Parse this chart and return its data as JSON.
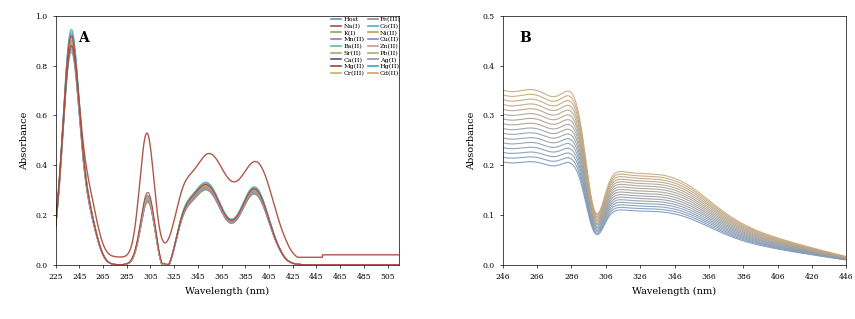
{
  "panel_A": {
    "title": "A",
    "xlabel": "Wavelength (nm)",
    "ylabel": "Absorbance",
    "xlim": [
      225,
      515
    ],
    "ylim": [
      0,
      1.0
    ],
    "xticks": [
      225,
      245,
      265,
      285,
      305,
      325,
      345,
      365,
      385,
      405,
      425,
      445,
      465,
      485,
      505
    ],
    "yticks": [
      0,
      0.2,
      0.4,
      0.6,
      0.8,
      1.0
    ],
    "legend_col1": [
      "Host",
      "K(I)",
      "Ba(II)",
      "Ca(II)",
      "Cr(III)",
      "Co(II)",
      "Cu(II)",
      "Pb(II)",
      "Hg(II)"
    ],
    "legend_col2": [
      "Na(I)",
      "Mn(II)",
      "Sr(II)",
      "Mg(II)",
      "Fe(III)",
      "Ni(II)",
      "Zn(II)",
      "Ag(I)",
      "Cd(II)"
    ],
    "series": {
      "Host": {
        "color": "#7090b8",
        "lw": 0.8
      },
      "K(I)": {
        "color": "#a89858",
        "lw": 0.8
      },
      "Ba(II)": {
        "color": "#68b0b0",
        "lw": 0.8
      },
      "Ca(II)": {
        "color": "#505878",
        "lw": 0.8
      },
      "Cr(III)": {
        "color": "#c0b068",
        "lw": 0.8
      },
      "Co(II)": {
        "color": "#50b0c0",
        "lw": 0.8
      },
      "Cu(II)": {
        "color": "#8888c0",
        "lw": 0.8
      },
      "Pb(II)": {
        "color": "#a8b070",
        "lw": 0.8
      },
      "Hg(II)": {
        "color": "#40a8b8",
        "lw": 0.8
      },
      "Na(I)": {
        "color": "#a85040",
        "lw": 1.0
      },
      "Mn(II)": {
        "color": "#8888a8",
        "lw": 0.8
      },
      "Sr(II)": {
        "color": "#c0a060",
        "lw": 0.8
      },
      "Mg(II)": {
        "color": "#b03838",
        "lw": 0.8
      },
      "Fe(III)": {
        "color": "#909090",
        "lw": 0.8
      },
      "Ni(II)": {
        "color": "#c89858",
        "lw": 0.8
      },
      "Zn(II)": {
        "color": "#c89898",
        "lw": 0.8
      },
      "Ag(I)": {
        "color": "#8898b8",
        "lw": 0.8
      },
      "Cd(II)": {
        "color": "#c0a870",
        "lw": 0.8
      }
    },
    "base_scales": {
      "Host": 1.0,
      "K(I)": 0.97,
      "Ba(II)": 1.02,
      "Ca(II)": 0.98,
      "Cr(III)": 0.95,
      "Co(II)": 1.03,
      "Cu(II)": 0.96,
      "Pb(II)": 0.99,
      "Hg(II)": 1.01,
      "Na(I)": 1.0,
      "Mn(II)": 0.94,
      "Sr(II)": 0.98,
      "Mg(II)": 1.0,
      "Fe(III)": 0.93,
      "Ni(II)": 0.97,
      "Zn(II)": 1.0,
      "Ag(I)": 0.95,
      "Cd(II)": 0.99
    }
  },
  "panel_B": {
    "title": "B",
    "xlabel": "Wavelength (nm)",
    "ylabel": "Absorbance",
    "xlim": [
      246,
      446
    ],
    "ylim": [
      0,
      0.5
    ],
    "xticks": [
      246,
      266,
      286,
      306,
      326,
      346,
      366,
      386,
      406,
      426,
      446
    ],
    "yticks": [
      0,
      0.1,
      0.2,
      0.3,
      0.4,
      0.5
    ],
    "n_curves": 16
  }
}
